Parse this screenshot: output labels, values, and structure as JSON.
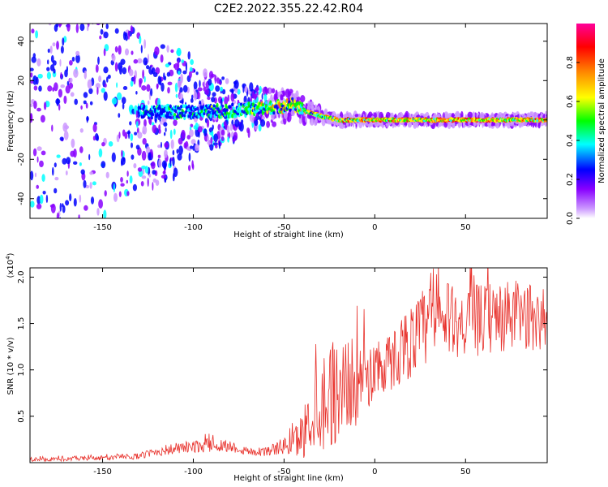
{
  "title": "C2E2.2022.355.22.42.R04",
  "spectrogram": {
    "type": "heatmap",
    "xlabel": "Height of straight line (km)",
    "ylabel": "Frequency (Hz)",
    "xlim": [
      -190,
      95
    ],
    "ylim": [
      -50,
      49
    ],
    "xticks": [
      -150,
      -100,
      -50,
      0,
      50
    ],
    "yticks": [
      -40,
      -20,
      0,
      20,
      40
    ],
    "colorbar": {
      "label": "Normalized spectral amplitude",
      "range": [
        0,
        1
      ],
      "ticks": [
        "0.0",
        "0.2",
        "0.4",
        "0.6",
        "0.8"
      ],
      "colors": [
        "#ffffff",
        "#cc99ff",
        "#8800ff",
        "#0000ff",
        "#00ffff",
        "#00ff00",
        "#ffff00",
        "#ff8800",
        "#ff0000",
        "#ff0099"
      ]
    },
    "ridge": {
      "description_points_x": [
        -190,
        -150,
        -100,
        -75,
        -60,
        -50,
        -45,
        -40,
        -30,
        -20,
        0,
        95
      ],
      "center_hz": [
        5,
        4,
        4,
        5,
        6,
        7,
        8,
        5,
        2,
        0,
        0,
        0
      ],
      "peak_amplitude": [
        0.25,
        0.3,
        0.45,
        0.55,
        0.65,
        0.7,
        0.7,
        0.7,
        0.75,
        0.85,
        0.9,
        0.9
      ]
    }
  },
  "snr": {
    "type": "line",
    "xlabel": "Height of straight line (km)",
    "ylabel": "SNR (10 * v/v)",
    "scale_label": "(x10",
    "scale_exp": "4",
    "scale_close": ")",
    "xlim": [
      -190,
      95
    ],
    "ylim": [
      0,
      21000
    ],
    "xticks": [
      -150,
      -100,
      -50,
      0,
      50
    ],
    "yticks": [
      5000,
      10000,
      15000,
      20000
    ],
    "ytick_labels": [
      "0.5",
      "1.0",
      "1.5",
      "2.0"
    ],
    "series_color": "#e8302a",
    "envelope_x": [
      -190,
      -150,
      -130,
      -120,
      -110,
      -100,
      -90,
      -80,
      -70,
      -60,
      -50,
      -45,
      -40,
      -35,
      -30,
      -25,
      -20,
      -15,
      -10,
      -5,
      0,
      5,
      10,
      15,
      20,
      25,
      30,
      40,
      50,
      60,
      70,
      80,
      95
    ],
    "envelope_mean": [
      300,
      500,
      700,
      1200,
      1500,
      1700,
      1900,
      1800,
      1200,
      1200,
      1800,
      2000,
      3000,
      5000,
      6500,
      7500,
      8000,
      8500,
      8500,
      9000,
      10000,
      10500,
      11000,
      12500,
      13000,
      14000,
      15000,
      15500,
      15000,
      15500,
      15500,
      16000,
      15000
    ],
    "envelope_spread": [
      150,
      200,
      250,
      400,
      500,
      500,
      600,
      500,
      350,
      400,
      700,
      1200,
      2000,
      3000,
      4000,
      4500,
      4500,
      4000,
      3500,
      3000,
      2500,
      2500,
      2500,
      3000,
      3000,
      3500,
      3500,
      3000,
      3000,
      3000,
      3000,
      3000,
      2500
    ]
  }
}
